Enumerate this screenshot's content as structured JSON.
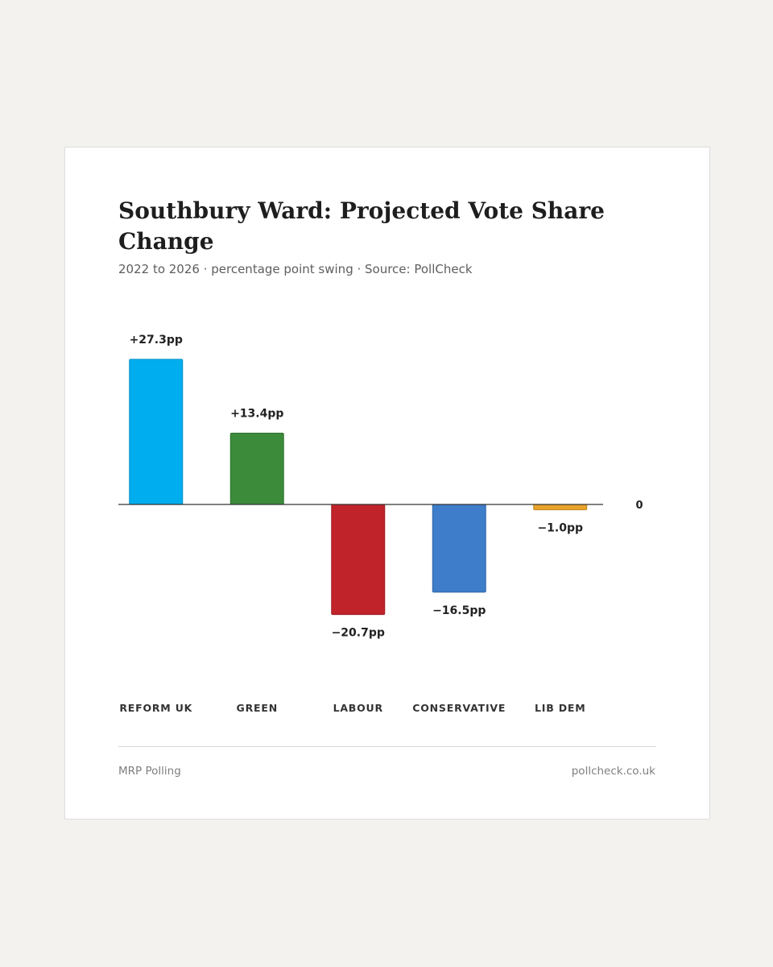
{
  "card": {
    "title": "Southbury Ward: Projected Vote Share Change",
    "subtitle": "2022 to 2026 · percentage point swing · Source: PollCheck",
    "footer_left": "MRP Polling",
    "footer_right": "pollcheck.co.uk"
  },
  "chart_data": {
    "type": "bar",
    "title": "Southbury Ward: Projected Vote Share Change",
    "subtitle": "2022 to 2026 · percentage point swing · Source: PollCheck",
    "categories": [
      "REFORM UK",
      "GREEN",
      "LABOUR",
      "CONSERVATIVE",
      "LIB DEM"
    ],
    "values": [
      27.3,
      13.4,
      -20.7,
      -16.5,
      -1.0
    ],
    "data_labels": [
      "+27.3pp",
      "+13.4pp",
      "−20.7pp",
      "−16.5pp",
      "−1.0pp"
    ],
    "colors": [
      "#00aeef",
      "#3b8b3b",
      "#c1232b",
      "#3d7dca",
      "#e8a32a"
    ],
    "zero_label": "0",
    "xlabel": "",
    "ylabel": "",
    "grid": false,
    "legend": "none"
  }
}
